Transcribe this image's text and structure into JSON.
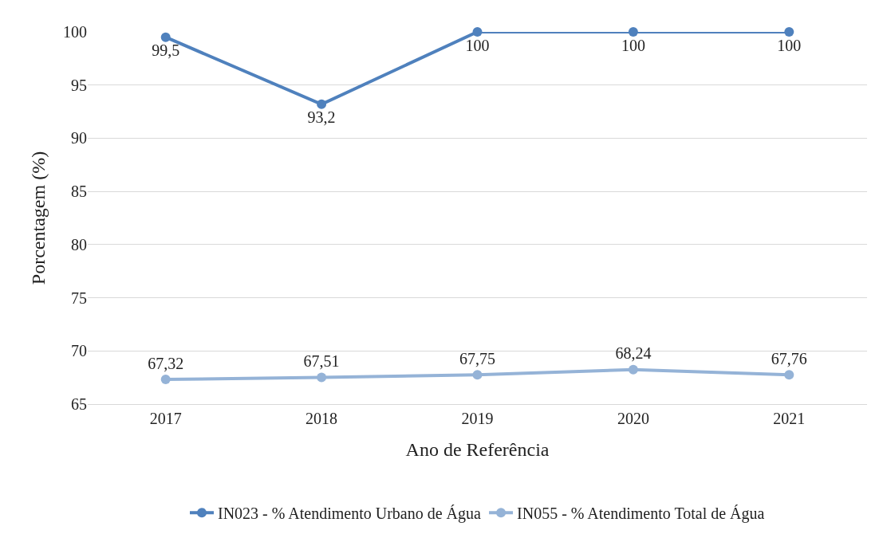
{
  "chart_data": {
    "type": "line",
    "xlabel": "Ano de Referência",
    "ylabel": "Porcentagem (%)",
    "categories": [
      "2017",
      "2018",
      "2019",
      "2020",
      "2021"
    ],
    "series": [
      {
        "name": "IN023 - % Atendimento Urbano de Água",
        "color": "#4f81bd",
        "values": [
          99.5,
          93.2,
          100,
          100,
          100
        ],
        "value_labels": [
          "99,5",
          "93,2",
          "100",
          "100",
          "100"
        ]
      },
      {
        "name": "IN055 - % Atendimento Total de Água",
        "color": "#95b3d7",
        "values": [
          67.32,
          67.51,
          67.75,
          68.24,
          67.76
        ],
        "value_labels": [
          "67,32",
          "67,51",
          "67,75",
          "68,24",
          "67,76"
        ]
      }
    ],
    "ylim": [
      65,
      100
    ],
    "yticks": [
      65,
      70,
      75,
      80,
      85,
      90,
      95,
      100
    ],
    "grid": "y",
    "legend": "bottom",
    "marker": "circle",
    "line_style": "solid"
  }
}
